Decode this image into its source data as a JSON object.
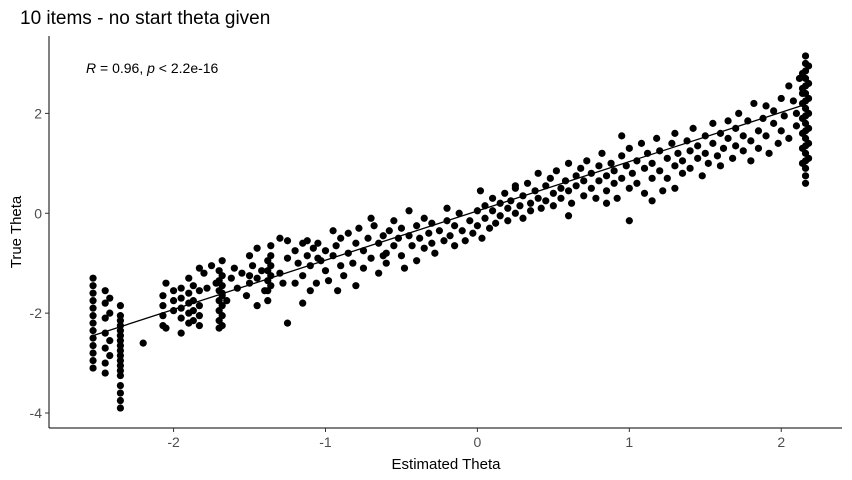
{
  "chart_data": {
    "type": "scatter",
    "title": "10 items - no start theta given",
    "xlabel": "Estimated Theta",
    "ylabel": "True Theta",
    "xlim": [
      -2.82,
      2.4
    ],
    "ylim": [
      -4.3,
      3.55
    ],
    "x_ticks": [
      -2,
      -1,
      0,
      1,
      2
    ],
    "y_ticks": [
      -4,
      -2,
      0,
      2
    ],
    "grid": false,
    "annotation": {
      "r_label": "R",
      "r_value": " = 0.96, ",
      "p_label": "p",
      "p_value": " < 2.2e-16"
    },
    "regression_line": {
      "x": [
        -2.53,
        2.16
      ],
      "y": [
        -2.45,
        2.18
      ]
    },
    "point_color": "#000000",
    "points": [
      [
        -2.53,
        -1.3
      ],
      [
        -2.53,
        -1.45
      ],
      [
        -2.53,
        -1.6
      ],
      [
        -2.53,
        -1.75
      ],
      [
        -2.53,
        -1.9
      ],
      [
        -2.53,
        -2.05
      ],
      [
        -2.53,
        -2.2
      ],
      [
        -2.53,
        -2.35
      ],
      [
        -2.53,
        -2.5
      ],
      [
        -2.53,
        -2.65
      ],
      [
        -2.53,
        -2.8
      ],
      [
        -2.53,
        -2.95
      ],
      [
        -2.53,
        -3.1
      ],
      [
        -2.45,
        -1.55
      ],
      [
        -2.45,
        -1.8
      ],
      [
        -2.45,
        -2.1
      ],
      [
        -2.45,
        -2.4
      ],
      [
        -2.45,
        -2.7
      ],
      [
        -2.45,
        -3.0
      ],
      [
        -2.45,
        -3.2
      ],
      [
        -2.42,
        -1.7
      ],
      [
        -2.42,
        -2.0
      ],
      [
        -2.42,
        -2.55
      ],
      [
        -2.42,
        -2.85
      ],
      [
        -2.35,
        -1.85
      ],
      [
        -2.35,
        -2.05
      ],
      [
        -2.35,
        -2.25
      ],
      [
        -2.35,
        -2.45
      ],
      [
        -2.35,
        -2.65
      ],
      [
        -2.35,
        -2.85
      ],
      [
        -2.35,
        -3.05
      ],
      [
        -2.35,
        -3.25
      ],
      [
        -2.35,
        -3.45
      ],
      [
        -2.35,
        -3.6
      ],
      [
        -2.35,
        -3.75
      ],
      [
        -2.35,
        -3.9
      ],
      [
        -2.35,
        -2.15
      ],
      [
        -2.35,
        -2.35
      ],
      [
        -2.35,
        -2.55
      ],
      [
        -2.35,
        -2.75
      ],
      [
        -2.35,
        -2.95
      ],
      [
        -2.35,
        -3.15
      ],
      [
        -2.2,
        -2.6
      ],
      [
        -2.05,
        -1.4
      ],
      [
        -2.05,
        -2.3
      ],
      [
        -1.95,
        -1.5
      ],
      [
        -1.95,
        -1.7
      ],
      [
        -1.95,
        -1.9
      ],
      [
        -1.95,
        -2.1
      ],
      [
        -1.95,
        -2.4
      ],
      [
        -1.9,
        -1.3
      ],
      [
        -1.9,
        -1.6
      ],
      [
        -1.9,
        -1.8
      ],
      [
        -1.9,
        -2.0
      ],
      [
        -1.9,
        -2.2
      ],
      [
        -1.87,
        -1.45
      ],
      [
        -1.87,
        -1.75
      ],
      [
        -1.87,
        -1.95
      ],
      [
        -1.87,
        -2.15
      ],
      [
        -1.83,
        -1.1
      ],
      [
        -1.83,
        -1.55
      ],
      [
        -1.83,
        -1.85
      ],
      [
        -1.83,
        -2.05
      ],
      [
        -1.83,
        -2.25
      ],
      [
        -1.75,
        -1.05
      ],
      [
        -1.72,
        -1.4
      ],
      [
        -1.68,
        -1.6
      ],
      [
        -1.65,
        -1.75
      ],
      [
        -1.8,
        -1.2
      ],
      [
        -1.78,
        -1.5
      ],
      [
        -1.7,
        -1.15
      ],
      [
        -1.7,
        -1.35
      ],
      [
        -1.7,
        -1.55
      ],
      [
        -1.7,
        -1.75
      ],
      [
        -1.7,
        -1.95
      ],
      [
        -1.7,
        -2.15
      ],
      [
        -1.7,
        -2.3
      ],
      [
        -1.68,
        -0.95
      ],
      [
        -1.68,
        -1.25
      ],
      [
        -1.68,
        -1.45
      ],
      [
        -1.68,
        -1.65
      ],
      [
        -1.68,
        -1.85
      ],
      [
        -1.68,
        -2.05
      ],
      [
        -1.68,
        -2.25
      ],
      [
        -1.62,
        -1.3
      ],
      [
        -1.6,
        -1.1
      ],
      [
        -1.58,
        -1.5
      ],
      [
        -1.55,
        -1.2
      ],
      [
        -1.52,
        -1.65
      ],
      [
        -1.5,
        -1.4
      ],
      [
        -1.48,
        -1.05
      ],
      [
        -1.45,
        -1.3
      ],
      [
        -1.45,
        -1.85
      ],
      [
        -1.42,
        -1.15
      ],
      [
        -1.4,
        -1.55
      ],
      [
        -1.38,
        -0.95
      ],
      [
        -1.38,
        -1.15
      ],
      [
        -1.38,
        -1.35
      ],
      [
        -1.38,
        -1.55
      ],
      [
        -1.38,
        -1.75
      ],
      [
        -1.36,
        -0.65
      ],
      [
        -1.36,
        -0.85
      ],
      [
        -1.36,
        -1.05
      ],
      [
        -1.36,
        -1.25
      ],
      [
        -1.36,
        -1.45
      ],
      [
        -1.3,
        -1.2
      ],
      [
        -1.28,
        -1.4
      ],
      [
        -1.25,
        -0.9
      ],
      [
        -1.25,
        -2.2
      ],
      [
        -1.2,
        -0.75
      ],
      [
        -1.18,
        -1.0
      ],
      [
        -1.15,
        -1.25
      ],
      [
        -1.12,
        -0.85
      ],
      [
        -1.1,
        -1.55
      ],
      [
        -1.1,
        -1.05
      ],
      [
        -1.05,
        -0.6
      ],
      [
        -1.03,
        -0.95
      ],
      [
        -1.0,
        -1.15
      ],
      [
        -1.0,
        -0.75
      ],
      [
        -0.98,
        -1.35
      ],
      [
        -1.15,
        -0.6
      ],
      [
        -1.12,
        -0.55
      ],
      [
        -1.08,
        -0.7
      ],
      [
        -1.06,
        -1.4
      ],
      [
        -0.95,
        -0.85
      ],
      [
        -0.93,
        -0.65
      ],
      [
        -0.9,
        -1.05
      ],
      [
        -0.9,
        -0.5
      ],
      [
        -0.88,
        -1.25
      ],
      [
        -0.85,
        -0.8
      ],
      [
        -0.85,
        -0.4
      ],
      [
        -0.82,
        -1.0
      ],
      [
        -0.8,
        -0.6
      ],
      [
        -0.8,
        -1.45
      ],
      [
        -0.78,
        -0.3
      ],
      [
        -0.75,
        -0.75
      ],
      [
        -0.75,
        -1.1
      ],
      [
        -0.72,
        -0.5
      ],
      [
        -0.7,
        -0.9
      ],
      [
        -0.68,
        -0.25
      ],
      [
        -0.65,
        -0.6
      ],
      [
        -0.65,
        -1.2
      ],
      [
        -0.62,
        -0.45
      ],
      [
        -0.6,
        -0.8
      ],
      [
        -0.6,
        -1.0
      ],
      [
        -0.58,
        -0.35
      ],
      [
        -0.55,
        -0.65
      ],
      [
        -0.55,
        -0.15
      ],
      [
        -0.52,
        -0.5
      ],
      [
        -0.5,
        -0.85
      ],
      [
        -0.5,
        -0.3
      ],
      [
        -0.48,
        -1.1
      ],
      [
        -0.45,
        -0.45
      ],
      [
        -0.43,
        -0.65
      ],
      [
        -0.4,
        -0.25
      ],
      [
        -0.4,
        -0.95
      ],
      [
        -0.38,
        -0.5
      ],
      [
        -0.35,
        -0.7
      ],
      [
        -0.35,
        -0.1
      ],
      [
        -0.32,
        -0.4
      ],
      [
        -0.3,
        -0.6
      ],
      [
        -0.3,
        -0.2
      ],
      [
        -0.28,
        -0.8
      ],
      [
        -0.25,
        -0.35
      ],
      [
        -0.22,
        -0.55
      ],
      [
        -0.2,
        -0.15
      ],
      [
        -0.18,
        -0.45
      ],
      [
        -0.15,
        -0.25
      ],
      [
        -0.15,
        -0.65
      ],
      [
        -0.12,
        0.0
      ],
      [
        -0.1,
        -0.35
      ],
      [
        -0.08,
        -0.55
      ],
      [
        -0.05,
        -0.15
      ],
      [
        -0.03,
        -0.4
      ],
      [
        0.0,
        0.05
      ],
      [
        0.0,
        -0.25
      ],
      [
        0.02,
        0.45
      ],
      [
        0.03,
        -0.5
      ],
      [
        0.05,
        0.15
      ],
      [
        0.05,
        -0.1
      ],
      [
        0.08,
        -0.3
      ],
      [
        0.1,
        0.3
      ],
      [
        0.1,
        0.05
      ],
      [
        0.12,
        -0.2
      ],
      [
        0.15,
        0.2
      ],
      [
        0.15,
        -0.05
      ],
      [
        0.18,
        0.4
      ],
      [
        0.2,
        0.1
      ],
      [
        0.2,
        -0.15
      ],
      [
        0.22,
        0.25
      ],
      [
        0.25,
        0.0
      ],
      [
        0.25,
        0.5
      ],
      [
        0.28,
        0.15
      ],
      [
        0.3,
        0.35
      ],
      [
        0.3,
        -0.1
      ],
      [
        0.33,
        0.6
      ],
      [
        0.35,
        0.2
      ],
      [
        0.35,
        0.05
      ],
      [
        0.38,
        0.45
      ],
      [
        0.4,
        0.3
      ],
      [
        0.4,
        0.8
      ],
      [
        0.42,
        0.1
      ],
      [
        0.45,
        0.55
      ],
      [
        0.45,
        0.25
      ],
      [
        0.48,
        0.7
      ],
      [
        0.5,
        0.4
      ],
      [
        0.5,
        0.15
      ],
      [
        0.52,
        0.85
      ],
      [
        0.55,
        0.5
      ],
      [
        0.55,
        0.3
      ],
      [
        0.58,
        0.65
      ],
      [
        0.6,
        0.45
      ],
      [
        0.6,
        1.0
      ],
      [
        0.62,
        0.2
      ],
      [
        0.65,
        0.75
      ],
      [
        0.65,
        0.55
      ],
      [
        0.68,
        0.9
      ],
      [
        0.7,
        0.35
      ],
      [
        0.7,
        0.65
      ],
      [
        0.72,
        1.05
      ],
      [
        0.75,
        0.5
      ],
      [
        0.75,
        0.8
      ],
      [
        0.78,
        0.3
      ],
      [
        0.8,
        0.95
      ],
      [
        0.8,
        0.65
      ],
      [
        0.82,
        1.2
      ],
      [
        0.85,
        0.45
      ],
      [
        0.85,
        0.75
      ],
      [
        0.88,
        1.0
      ],
      [
        0.9,
        0.6
      ],
      [
        0.9,
        0.85
      ],
      [
        0.92,
        0.3
      ],
      [
        0.95,
        1.15
      ],
      [
        0.95,
        0.7
      ],
      [
        0.98,
        0.95
      ],
      [
        1.0,
        0.5
      ],
      [
        1.0,
        1.3
      ],
      [
        1.02,
        0.8
      ],
      [
        1.05,
        1.05
      ],
      [
        1.05,
        0.6
      ],
      [
        1.08,
        1.4
      ],
      [
        1.1,
        0.9
      ],
      [
        1.1,
        0.4
      ],
      [
        1.12,
        1.2
      ],
      [
        1.15,
        0.7
      ],
      [
        1.15,
        1.0
      ],
      [
        1.18,
        1.5
      ],
      [
        1.2,
        0.85
      ],
      [
        1.2,
        1.25
      ],
      [
        1.22,
        0.45
      ],
      [
        1.25,
        1.1
      ],
      [
        1.25,
        0.7
      ],
      [
        1.28,
        1.4
      ],
      [
        1.3,
        0.95
      ],
      [
        1.3,
        1.6
      ],
      [
        1.32,
        1.2
      ],
      [
        1.35,
        0.8
      ],
      [
        1.35,
        1.05
      ],
      [
        1.38,
        1.45
      ],
      [
        1.4,
        1.25
      ],
      [
        1.4,
        0.9
      ],
      [
        1.42,
        1.7
      ],
      [
        1.45,
        1.1
      ],
      [
        1.45,
        1.35
      ],
      [
        1.48,
        0.75
      ],
      [
        1.5,
        1.55
      ],
      [
        1.5,
        1.2
      ],
      [
        1.52,
        1.0
      ],
      [
        1.55,
        1.8
      ],
      [
        1.55,
        1.4
      ],
      [
        1.58,
        1.15
      ],
      [
        1.6,
        1.6
      ],
      [
        1.6,
        0.95
      ],
      [
        1.62,
        1.3
      ],
      [
        1.65,
        1.85
      ],
      [
        1.65,
        1.5
      ],
      [
        1.68,
        1.1
      ],
      [
        1.7,
        1.7
      ],
      [
        1.7,
        1.35
      ],
      [
        1.72,
        2.0
      ],
      [
        1.75,
        1.25
      ],
      [
        1.75,
        1.55
      ],
      [
        1.78,
        1.85
      ],
      [
        1.8,
        1.45
      ],
      [
        1.8,
        1.05
      ],
      [
        1.82,
        2.2
      ],
      [
        1.85,
        1.65
      ],
      [
        1.85,
        1.3
      ],
      [
        1.88,
        1.9
      ],
      [
        1.9,
        1.55
      ],
      [
        1.9,
        2.15
      ],
      [
        1.92,
        1.2
      ],
      [
        1.95,
        1.8
      ],
      [
        1.95,
        2.05
      ],
      [
        1.98,
        1.4
      ],
      [
        2.0,
        2.3
      ],
      [
        2.0,
        1.65
      ],
      [
        2.02,
        1.95
      ],
      [
        2.05,
        2.55
      ],
      [
        2.05,
        1.5
      ],
      [
        2.08,
        2.25
      ],
      [
        2.1,
        2.0
      ],
      [
        2.1,
        1.75
      ],
      [
        2.12,
        2.7
      ],
      [
        2.14,
        2.4
      ],
      [
        2.16,
        3.15
      ],
      [
        2.16,
        3.0
      ],
      [
        2.16,
        2.85
      ],
      [
        2.16,
        2.7
      ],
      [
        2.16,
        2.55
      ],
      [
        2.16,
        2.4
      ],
      [
        2.16,
        2.25
      ],
      [
        2.16,
        2.1
      ],
      [
        2.16,
        1.95
      ],
      [
        2.16,
        1.8
      ],
      [
        2.16,
        1.65
      ],
      [
        2.16,
        1.5
      ],
      [
        2.16,
        1.35
      ],
      [
        2.16,
        1.2
      ],
      [
        2.16,
        1.05
      ],
      [
        2.16,
        0.9
      ],
      [
        2.16,
        0.75
      ],
      [
        2.16,
        0.6
      ],
      [
        2.18,
        2.95
      ],
      [
        2.18,
        2.6
      ],
      [
        2.18,
        2.3
      ],
      [
        2.18,
        2.0
      ],
      [
        2.18,
        1.7
      ],
      [
        2.18,
        1.4
      ],
      [
        2.18,
        1.1
      ],
      [
        2.14,
        2.8
      ],
      [
        2.14,
        2.5
      ],
      [
        2.14,
        2.2
      ],
      [
        2.14,
        1.9
      ],
      [
        2.14,
        1.6
      ],
      [
        2.14,
        1.3
      ],
      [
        2.14,
        1.0
      ],
      [
        -0.45,
        0.05
      ],
      [
        -0.2,
        0.1
      ],
      [
        0.25,
        0.55
      ],
      [
        0.6,
        -0.05
      ],
      [
        0.95,
        1.55
      ],
      [
        1.0,
        -0.15
      ],
      [
        1.3,
        0.5
      ],
      [
        -0.7,
        -0.1
      ],
      [
        -0.95,
        -0.35
      ],
      [
        -1.15,
        -1.8
      ],
      [
        -1.3,
        -0.5
      ],
      [
        -1.5,
        -1.25
      ],
      [
        0.85,
        0.2
      ],
      [
        1.15,
        0.25
      ],
      [
        -2.07,
        -1.65
      ],
      [
        -2.07,
        -1.85
      ],
      [
        -2.07,
        -2.05
      ],
      [
        -2.07,
        -2.25
      ],
      [
        -2.0,
        -1.55
      ],
      [
        -2.0,
        -1.75
      ],
      [
        -2.0,
        -1.95
      ],
      [
        -1.5,
        -0.85
      ],
      [
        -1.45,
        -0.7
      ],
      [
        -1.25,
        -0.55
      ],
      [
        -1.2,
        -1.4
      ],
      [
        -1.05,
        -0.9
      ],
      [
        -0.92,
        -1.55
      ],
      [
        -0.62,
        -0.85
      ]
    ]
  }
}
